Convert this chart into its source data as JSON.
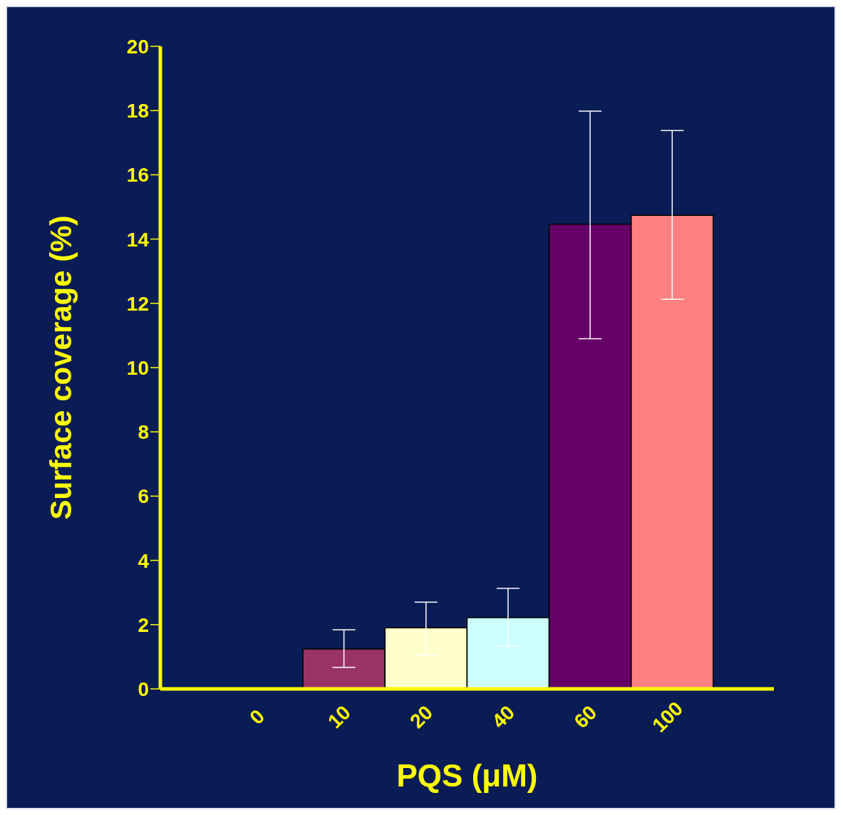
{
  "chart_data": {
    "type": "bar",
    "xlabel": "PQS (μM)",
    "ylabel": "Surface coverage (%)",
    "categories": [
      "0",
      "10",
      "20",
      "40",
      "60",
      "100"
    ],
    "values": [
      null,
      1.24,
      1.9,
      2.22,
      14.46,
      14.74
    ],
    "colors": [
      "#0a1c55",
      "#993366",
      "#ffffcc",
      "#ccffff",
      "#660066",
      "#ff8080"
    ],
    "errors": [
      null,
      [
        0.67,
        1.84
      ],
      [
        1.04,
        2.7
      ],
      [
        1.33,
        3.13
      ],
      [
        10.9,
        17.98
      ],
      [
        12.13,
        17.38
      ]
    ],
    "ylim": [
      0,
      20
    ],
    "yticks": [
      0,
      2,
      4,
      6,
      8,
      10,
      12,
      14,
      16,
      18,
      20
    ],
    "grid": false,
    "legend": false
  }
}
